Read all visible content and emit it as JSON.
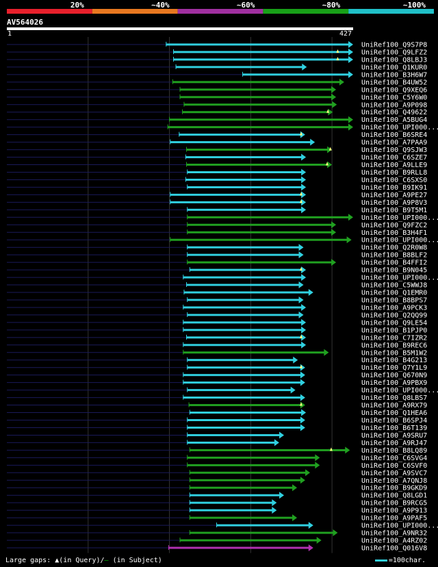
{
  "query": {
    "id": "AV564026",
    "start_label": "1",
    "end_label": "427",
    "length": 427
  },
  "identity_scale": [
    {
      "label": "20%",
      "color": "#e8202c"
    },
    {
      "label": "~40%",
      "color": "#e87820"
    },
    {
      "label": "~60%",
      "color": "#a030a0"
    },
    {
      "label": "~80%",
      "color": "#18a018"
    },
    {
      "label": "~100%",
      "color": "#20c0c8"
    }
  ],
  "colors": {
    "cyan": "#30d0e0",
    "green": "#20a020",
    "purple": "#b030b0",
    "background": "#000000",
    "guide": "#1a1a5a"
  },
  "legend": {
    "prefix": "Large gaps: ",
    "query_mark": "▲",
    "query_text": "(in Query)/",
    "subject_mark": "—",
    "subject_text": " (in Subject)"
  },
  "scale_legend": {
    "text": "=100char."
  },
  "chart_data": {
    "type": "alignment-overview",
    "x_unit": "query position",
    "xlim": [
      1,
      427
    ],
    "hits": [
      {
        "name": "UniRef100_Q9S7P8",
        "start": 197,
        "end": 427,
        "color": "cyan",
        "query_gaps": []
      },
      {
        "name": "UniRef100_Q9LFZ2",
        "start": 206,
        "end": 427,
        "color": "cyan",
        "query_gaps": [
          408
        ]
      },
      {
        "name": "UniRef100_Q8LBJ3",
        "start": 206,
        "end": 427,
        "color": "cyan",
        "query_gaps": [
          408
        ]
      },
      {
        "name": "UniRef100_Q1KUR0",
        "start": 209,
        "end": 370,
        "color": "cyan",
        "query_gaps": []
      },
      {
        "name": "UniRef100_B3H6W7",
        "start": 291,
        "end": 427,
        "color": "cyan",
        "query_gaps": []
      },
      {
        "name": "UniRef100_B4UW52",
        "start": 205,
        "end": 416,
        "color": "green",
        "query_gaps": []
      },
      {
        "name": "UniRef100_Q9XEQ6",
        "start": 214,
        "end": 406,
        "color": "green",
        "query_gaps": []
      },
      {
        "name": "UniRef100_C5Y6W0",
        "start": 214,
        "end": 406,
        "color": "green",
        "query_gaps": []
      },
      {
        "name": "UniRef100_A9P098",
        "start": 219,
        "end": 407,
        "color": "green",
        "query_gaps": []
      },
      {
        "name": "UniRef100_Q49622",
        "start": 217,
        "end": 402,
        "color": "green",
        "query_gaps": [
          396
        ]
      },
      {
        "name": "UniRef100_A5BUG4",
        "start": 201,
        "end": 427,
        "color": "green",
        "query_gaps": []
      },
      {
        "name": "UniRef100_UPI000...",
        "start": 199,
        "end": 427,
        "color": "green",
        "query_gaps": []
      },
      {
        "name": "UniRef100_B6SRE4",
        "start": 213,
        "end": 368,
        "color": "cyan",
        "query_gaps": [
          363
        ]
      },
      {
        "name": "UniRef100_A7PAA9",
        "start": 202,
        "end": 380,
        "color": "cyan",
        "query_gaps": []
      },
      {
        "name": "UniRef100_Q9SJW3",
        "start": 222,
        "end": 401,
        "color": "green",
        "query_gaps": [
          399
        ]
      },
      {
        "name": "UniRef100_C6SZE7",
        "start": 221,
        "end": 369,
        "color": "cyan",
        "query_gaps": []
      },
      {
        "name": "UniRef100_A9LLE9",
        "start": 222,
        "end": 401,
        "color": "green",
        "query_gaps": [
          395
        ]
      },
      {
        "name": "UniRef100_B9RLL8",
        "start": 223,
        "end": 369,
        "color": "cyan",
        "query_gaps": []
      },
      {
        "name": "UniRef100_C6SXS0",
        "start": 221,
        "end": 369,
        "color": "cyan",
        "query_gaps": []
      },
      {
        "name": "UniRef100_B9IK91",
        "start": 223,
        "end": 369,
        "color": "cyan",
        "query_gaps": []
      },
      {
        "name": "UniRef100_A9PE27",
        "start": 202,
        "end": 369,
        "color": "cyan",
        "query_gaps": [
          363
        ]
      },
      {
        "name": "UniRef100_A9P8V3",
        "start": 202,
        "end": 369,
        "color": "cyan",
        "query_gaps": [
          363
        ]
      },
      {
        "name": "UniRef100_B9T5M1",
        "start": 223,
        "end": 369,
        "color": "cyan",
        "query_gaps": []
      },
      {
        "name": "UniRef100_UPI000...",
        "start": 223,
        "end": 427,
        "color": "green",
        "query_gaps": []
      },
      {
        "name": "UniRef100_Q9FZC2",
        "start": 223,
        "end": 406,
        "color": "green",
        "query_gaps": []
      },
      {
        "name": "UniRef100_B3H4F1",
        "start": 223,
        "end": 406,
        "color": "green",
        "query_gaps": []
      },
      {
        "name": "UniRef100_UPI000...",
        "start": 202,
        "end": 425,
        "color": "green",
        "query_gaps": []
      },
      {
        "name": "UniRef100_Q2R0W8",
        "start": 223,
        "end": 366,
        "color": "cyan",
        "query_gaps": []
      },
      {
        "name": "UniRef100_B8BLF2",
        "start": 223,
        "end": 366,
        "color": "cyan",
        "query_gaps": []
      },
      {
        "name": "UniRef100_B4FFI2",
        "start": 223,
        "end": 406,
        "color": "green",
        "query_gaps": []
      },
      {
        "name": "UniRef100_B9N045",
        "start": 226,
        "end": 369,
        "color": "cyan",
        "query_gaps": [
          363
        ]
      },
      {
        "name": "UniRef100_UPI000...",
        "start": 218,
        "end": 369,
        "color": "cyan",
        "query_gaps": []
      },
      {
        "name": "UniRef100_C5WWJ8",
        "start": 222,
        "end": 366,
        "color": "cyan",
        "query_gaps": []
      },
      {
        "name": "UniRef100_Q1EMR0",
        "start": 219,
        "end": 378,
        "color": "cyan",
        "query_gaps": []
      },
      {
        "name": "UniRef100_B8BPS7",
        "start": 223,
        "end": 366,
        "color": "cyan",
        "query_gaps": []
      },
      {
        "name": "UniRef100_A9PCK3",
        "start": 218,
        "end": 369,
        "color": "cyan",
        "query_gaps": []
      },
      {
        "name": "UniRef100_Q2QQ99",
        "start": 223,
        "end": 366,
        "color": "cyan",
        "query_gaps": []
      },
      {
        "name": "UniRef100_Q9LE54",
        "start": 218,
        "end": 369,
        "color": "cyan",
        "query_gaps": []
      },
      {
        "name": "UniRef100_B1PJP0",
        "start": 218,
        "end": 369,
        "color": "cyan",
        "query_gaps": []
      },
      {
        "name": "UniRef100_C7IZR2",
        "start": 222,
        "end": 369,
        "color": "cyan",
        "query_gaps": [
          363
        ]
      },
      {
        "name": "UniRef100_B9REC6",
        "start": 218,
        "end": 369,
        "color": "cyan",
        "query_gaps": []
      },
      {
        "name": "UniRef100_B5M1W2",
        "start": 218,
        "end": 397,
        "color": "green",
        "query_gaps": []
      },
      {
        "name": "UniRef100_B4G213",
        "start": 223,
        "end": 359,
        "color": "cyan",
        "query_gaps": []
      },
      {
        "name": "UniRef100_Q7Y1L9",
        "start": 223,
        "end": 368,
        "color": "cyan",
        "query_gaps": [
          363
        ]
      },
      {
        "name": "UniRef100_Q670N9",
        "start": 218,
        "end": 368,
        "color": "cyan",
        "query_gaps": []
      },
      {
        "name": "UniRef100_A9PBX9",
        "start": 218,
        "end": 368,
        "color": "cyan",
        "query_gaps": []
      },
      {
        "name": "UniRef100_UPI000...",
        "start": 223,
        "end": 356,
        "color": "cyan",
        "query_gaps": []
      },
      {
        "name": "UniRef100_Q8LBS7",
        "start": 218,
        "end": 368,
        "color": "cyan",
        "query_gaps": []
      },
      {
        "name": "UniRef100_A9RX79",
        "start": 225,
        "end": 368,
        "color": "green",
        "query_gaps": [
          363
        ]
      },
      {
        "name": "UniRef100_Q1HEA6",
        "start": 226,
        "end": 369,
        "color": "cyan",
        "query_gaps": []
      },
      {
        "name": "UniRef100_B6SPJ4",
        "start": 223,
        "end": 368,
        "color": "cyan",
        "query_gaps": []
      },
      {
        "name": "UniRef100_B6T139",
        "start": 223,
        "end": 368,
        "color": "cyan",
        "query_gaps": []
      },
      {
        "name": "UniRef100_A9SRU7",
        "start": 223,
        "end": 342,
        "color": "cyan",
        "query_gaps": []
      },
      {
        "name": "UniRef100_A9RJ47",
        "start": 223,
        "end": 336,
        "color": "cyan",
        "query_gaps": []
      },
      {
        "name": "UniRef100_B8LQ89",
        "start": 226,
        "end": 423,
        "color": "green",
        "query_gaps": [
          400
        ]
      },
      {
        "name": "UniRef100_C6SVG4",
        "start": 223,
        "end": 386,
        "color": "green",
        "query_gaps": []
      },
      {
        "name": "UniRef100_C6SVF0",
        "start": 223,
        "end": 386,
        "color": "green",
        "query_gaps": []
      },
      {
        "name": "UniRef100_A9SVC7",
        "start": 226,
        "end": 374,
        "color": "green",
        "query_gaps": []
      },
      {
        "name": "UniRef100_A7QNJ8",
        "start": 226,
        "end": 368,
        "color": "green",
        "query_gaps": []
      },
      {
        "name": "UniRef100_B9GKD9",
        "start": 226,
        "end": 358,
        "color": "green",
        "query_gaps": []
      },
      {
        "name": "UniRef100_Q8LGD1",
        "start": 226,
        "end": 342,
        "color": "cyan",
        "query_gaps": []
      },
      {
        "name": "UniRef100_B9RCG5",
        "start": 226,
        "end": 333,
        "color": "cyan",
        "query_gaps": []
      },
      {
        "name": "UniRef100_A9P913",
        "start": 226,
        "end": 333,
        "color": "cyan",
        "query_gaps": []
      },
      {
        "name": "UniRef100_A9PAF5",
        "start": 226,
        "end": 358,
        "color": "green",
        "query_gaps": []
      },
      {
        "name": "UniRef100_UPI000...",
        "start": 259,
        "end": 378,
        "color": "cyan",
        "query_gaps": []
      },
      {
        "name": "UniRef100_A9NR32",
        "start": 226,
        "end": 408,
        "color": "green",
        "query_gaps": []
      },
      {
        "name": "UniRef100_A4RZ02",
        "start": 214,
        "end": 388,
        "color": "green",
        "query_gaps": []
      },
      {
        "name": "UniRef100_Q016V8",
        "start": 200,
        "end": 378,
        "color": "purple",
        "query_gaps": []
      }
    ]
  }
}
